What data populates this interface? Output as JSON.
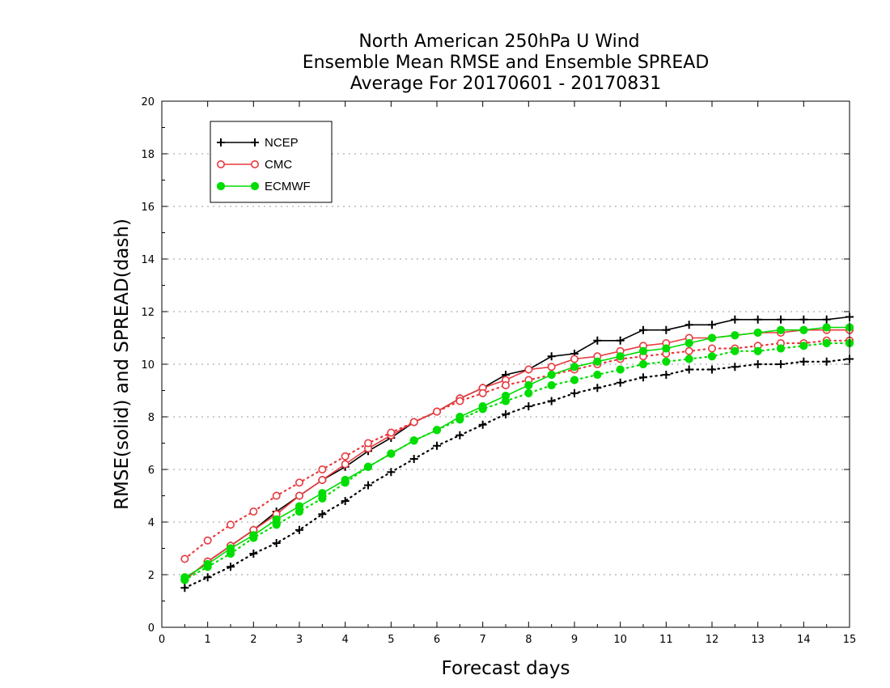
{
  "chart_data": {
    "type": "line",
    "title": [
      "North American 250hPa U Wind",
      "Ensemble Mean RMSE and Ensemble SPREAD",
      "Average For 20170601 - 20170831"
    ],
    "xlabel": "Forecast days",
    "ylabel": "RMSE(solid) and SPREAD(dash)",
    "xlim": [
      0,
      15
    ],
    "ylim": [
      0,
      20
    ],
    "xticks": [
      0,
      1,
      2,
      3,
      4,
      5,
      6,
      7,
      8,
      9,
      10,
      11,
      12,
      13,
      14,
      15
    ],
    "yticks": [
      0,
      2,
      4,
      6,
      8,
      10,
      12,
      14,
      16,
      18,
      20
    ],
    "grid": "horizontal dotted",
    "legend_position": "top-left",
    "x": [
      0.5,
      1,
      1.5,
      2,
      2.5,
      3,
      3.5,
      4,
      4.5,
      5,
      5.5,
      6,
      6.5,
      7,
      7.5,
      8,
      8.5,
      9,
      9.5,
      10,
      10.5,
      11,
      11.5,
      12,
      12.5,
      13,
      13.5,
      14,
      14.5,
      15
    ],
    "series": [
      {
        "name": "NCEP",
        "color": "#000000",
        "marker": "plus",
        "style": "solid",
        "values": [
          1.8,
          2.5,
          3.1,
          3.7,
          4.4,
          5.0,
          5.6,
          6.1,
          6.7,
          7.2,
          7.8,
          8.2,
          8.7,
          9.1,
          9.6,
          9.8,
          10.3,
          10.4,
          10.9,
          10.9,
          11.3,
          11.3,
          11.5,
          11.5,
          11.7,
          11.7,
          11.7,
          11.7,
          11.7,
          11.8
        ]
      },
      {
        "name": "NCEP",
        "color": "#000000",
        "marker": "plus",
        "style": "dotted",
        "values": [
          1.5,
          1.9,
          2.3,
          2.8,
          3.2,
          3.7,
          4.3,
          4.8,
          5.4,
          5.9,
          6.4,
          6.9,
          7.3,
          7.7,
          8.1,
          8.4,
          8.6,
          8.9,
          9.1,
          9.3,
          9.5,
          9.6,
          9.8,
          9.8,
          9.9,
          10.0,
          10.0,
          10.1,
          10.1,
          10.2
        ]
      },
      {
        "name": "CMC",
        "color": "#e8393e",
        "marker": "circle",
        "style": "solid",
        "values": [
          1.8,
          2.5,
          3.1,
          3.7,
          4.3,
          5.0,
          5.6,
          6.2,
          6.8,
          7.3,
          7.8,
          8.2,
          8.7,
          9.1,
          9.4,
          9.8,
          9.9,
          10.2,
          10.3,
          10.5,
          10.7,
          10.8,
          11.0,
          11.0,
          11.1,
          11.2,
          11.2,
          11.3,
          11.3,
          11.3
        ]
      },
      {
        "name": "CMC",
        "color": "#e8393e",
        "marker": "circle",
        "style": "dotted",
        "values": [
          2.6,
          3.3,
          3.9,
          4.4,
          5.0,
          5.5,
          6.0,
          6.5,
          7.0,
          7.4,
          7.8,
          8.2,
          8.6,
          8.9,
          9.2,
          9.4,
          9.6,
          9.8,
          10.0,
          10.2,
          10.3,
          10.4,
          10.5,
          10.6,
          10.6,
          10.7,
          10.8,
          10.8,
          10.9,
          10.9
        ]
      },
      {
        "name": "ECMWF",
        "color": "#00dd00",
        "marker": "dot",
        "style": "solid",
        "values": [
          1.9,
          2.4,
          3.0,
          3.5,
          4.1,
          4.6,
          5.1,
          5.6,
          6.1,
          6.6,
          7.1,
          7.5,
          8.0,
          8.4,
          8.8,
          9.2,
          9.6,
          9.9,
          10.1,
          10.3,
          10.5,
          10.6,
          10.8,
          11.0,
          11.1,
          11.2,
          11.3,
          11.3,
          11.4,
          11.4
        ]
      },
      {
        "name": "ECMWF",
        "color": "#00dd00",
        "marker": "dot",
        "style": "dotted",
        "values": [
          1.8,
          2.3,
          2.8,
          3.4,
          3.9,
          4.4,
          4.9,
          5.5,
          6.1,
          6.6,
          7.1,
          7.5,
          7.9,
          8.3,
          8.6,
          8.9,
          9.2,
          9.4,
          9.6,
          9.8,
          10.0,
          10.1,
          10.2,
          10.3,
          10.5,
          10.5,
          10.6,
          10.7,
          10.8,
          10.8
        ]
      }
    ],
    "legend": [
      {
        "label": "NCEP",
        "color": "#000000",
        "marker": "plus"
      },
      {
        "label": "CMC",
        "color": "#e8393e",
        "marker": "circle"
      },
      {
        "label": "ECMWF",
        "color": "#00dd00",
        "marker": "dot"
      }
    ]
  }
}
